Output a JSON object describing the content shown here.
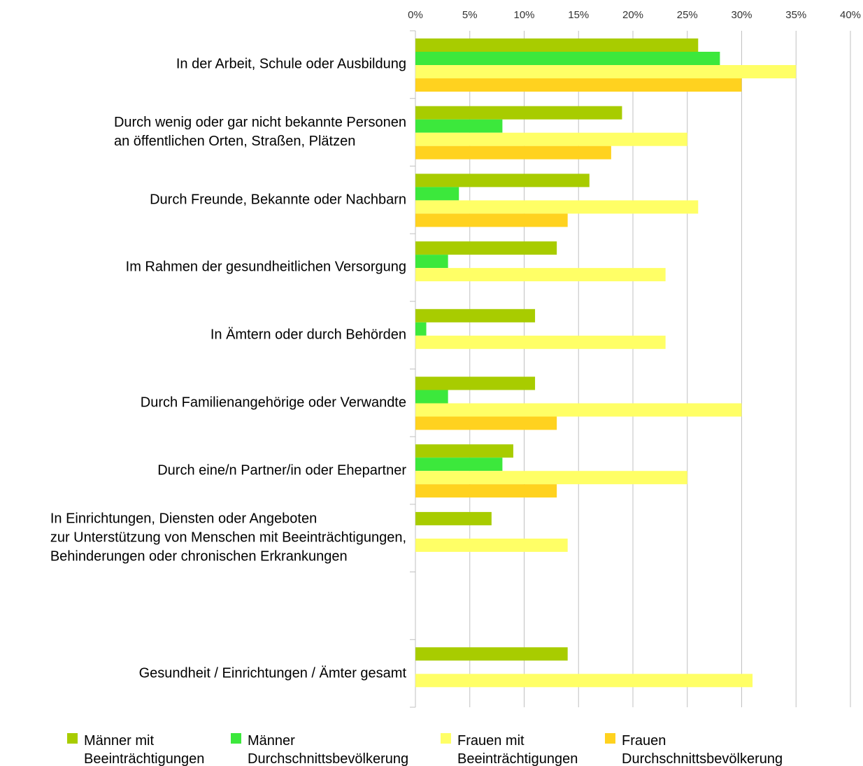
{
  "chart_data": {
    "type": "barh",
    "categories": [
      "In der Arbeit, Schule oder Ausbildung",
      "Durch wenig oder gar nicht bekannte Personen \nan öffentlichen Orten, Straßen, Plätzen",
      "Durch Freunde, Bekannte oder Nachbarn",
      "Im Rahmen der gesundheitlichen Versorgung",
      "In Ämtern oder durch Behörden",
      "Durch Familienangehörige oder Verwandte",
      "Durch eine/n Partner/in oder Ehepartner",
      "In Einrichtungen, Diensten oder Angeboten\nzur Unterstützung von Menschen mit Beeinträchtigungen,\nBehinderungen oder chronischen Erkrankungen",
      null,
      "Gesundheit / Einrichtungen / Ämter gesamt"
    ],
    "series": [
      {
        "name": "Männer mit\nBeeinträchtigungen",
        "color": "#a8cc00",
        "values": [
          26,
          19,
          16,
          13,
          11,
          11,
          9,
          7,
          null,
          14
        ]
      },
      {
        "name": "Männer\nDurchschnittsbevölkerung",
        "color": "#3ce83c",
        "values": [
          28,
          8,
          4,
          3,
          1,
          3,
          8,
          null,
          null,
          null
        ]
      },
      {
        "name": "Frauen mit\nBeeinträchtigungen",
        "color": "#ffff66",
        "values": [
          35,
          25,
          26,
          23,
          23,
          30,
          25,
          14,
          null,
          31
        ]
      },
      {
        "name": "Frauen\nDurchschnittsbevölkerung",
        "color": "#ffd21f",
        "values": [
          30,
          18,
          14,
          null,
          null,
          13,
          13,
          null,
          null,
          null
        ]
      }
    ],
    "xlim": [
      0,
      40
    ],
    "xticks": [
      {
        "value": 0,
        "label": "0%"
      },
      {
        "value": 5,
        "label": "5%"
      },
      {
        "value": 10,
        "label": "10%"
      },
      {
        "value": 15,
        "label": "15%"
      },
      {
        "value": 20,
        "label": "20%"
      },
      {
        "value": 25,
        "label": "25%"
      },
      {
        "value": 30,
        "label": "30%"
      },
      {
        "value": 35,
        "label": "35%"
      },
      {
        "value": 40,
        "label": "40%"
      }
    ],
    "grid": true,
    "legend": "bottom"
  }
}
